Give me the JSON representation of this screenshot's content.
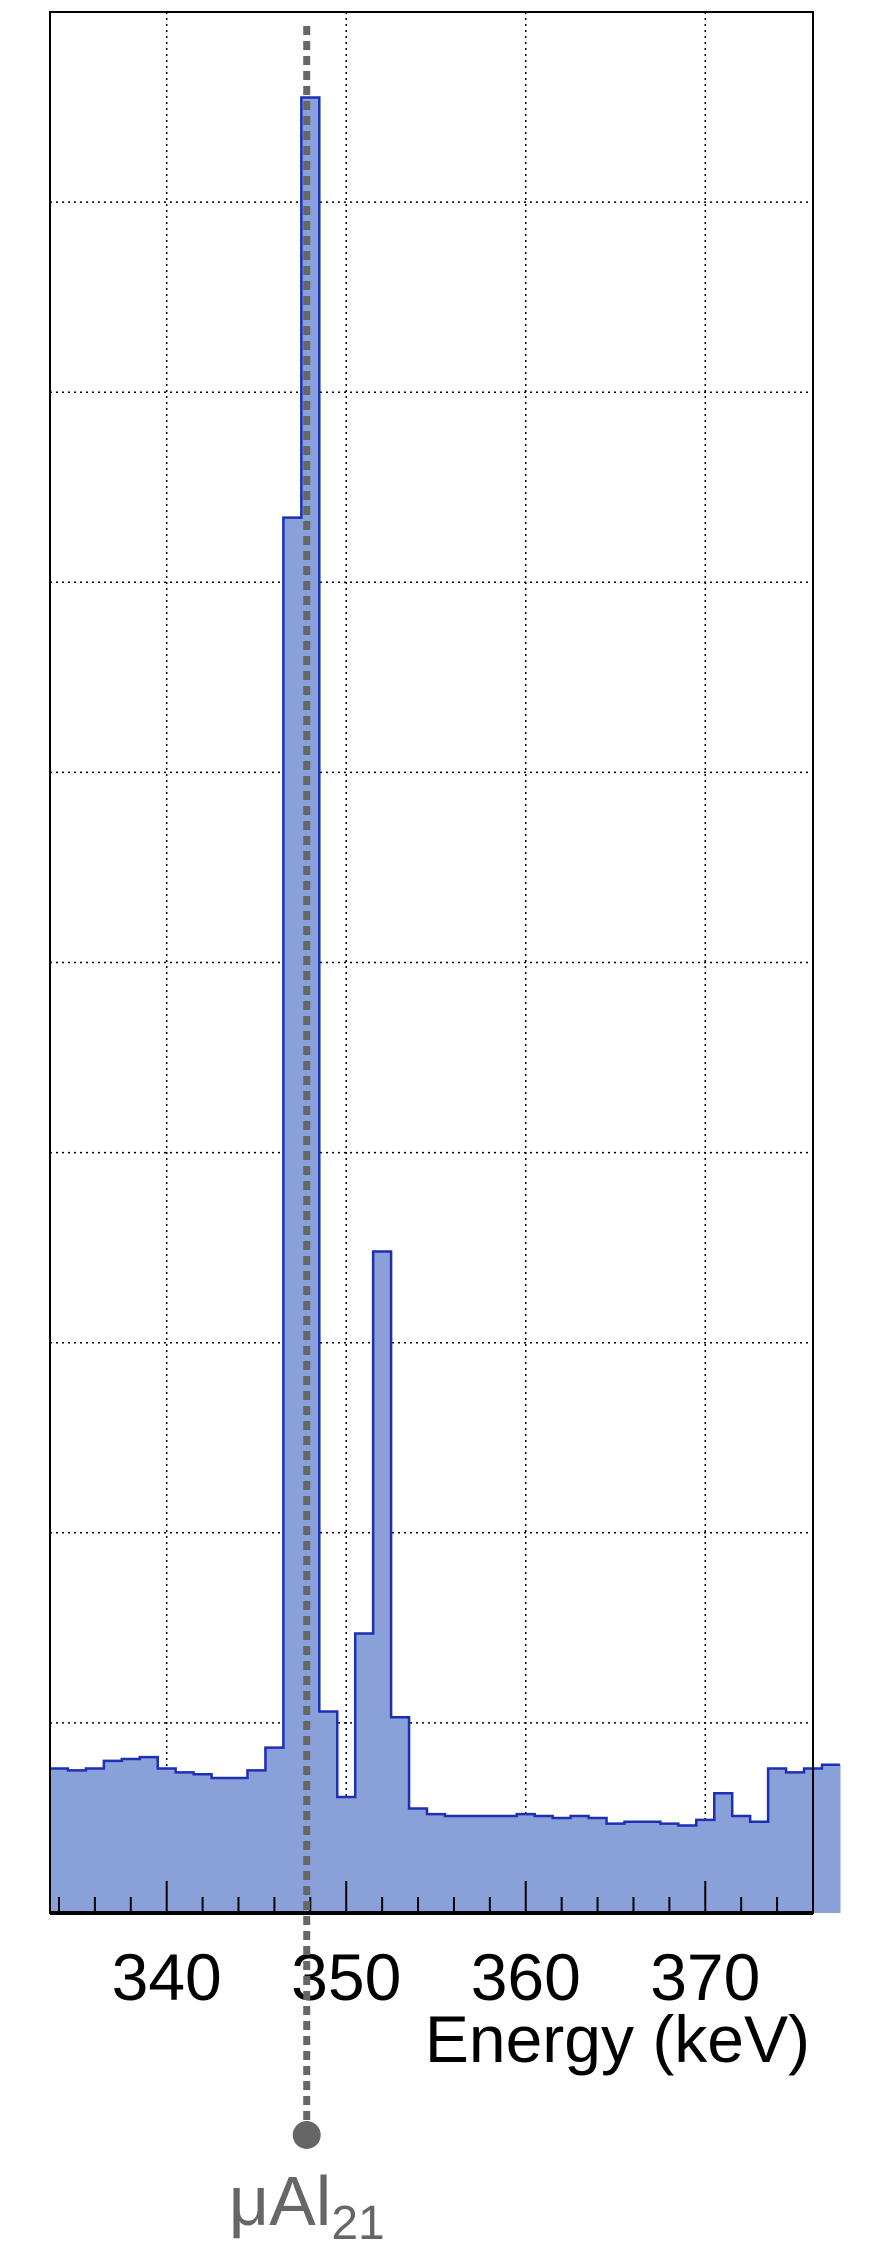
{
  "chart_data": {
    "type": "bar",
    "title": "",
    "xlabel": "Energy (keV)",
    "ylabel": "",
    "xlim": [
      333.5,
      376
    ],
    "ylim": [
      0,
      1000
    ],
    "xticks": [
      340,
      350,
      360,
      370
    ],
    "xtick_labels": [
      "340",
      "350",
      "360",
      "370"
    ],
    "grid": true,
    "bin_width": 1,
    "bins_start": 333.5,
    "values": [
      76,
      75,
      76,
      80,
      81,
      82,
      76,
      74,
      73,
      71,
      71,
      75,
      87,
      734,
      955,
      106,
      61,
      147,
      348,
      103,
      55,
      52,
      51,
      51,
      51,
      51,
      52,
      51,
      50,
      51,
      50,
      47,
      48,
      48,
      47,
      46,
      49,
      63,
      51,
      48,
      76,
      74,
      76,
      78
    ],
    "series_color": "#8aa0d8",
    "series_edge_color": "#1c2fb5",
    "marker": {
      "x": 347.8,
      "label": "μAl",
      "label_sub": "21",
      "color": "#666666"
    }
  }
}
